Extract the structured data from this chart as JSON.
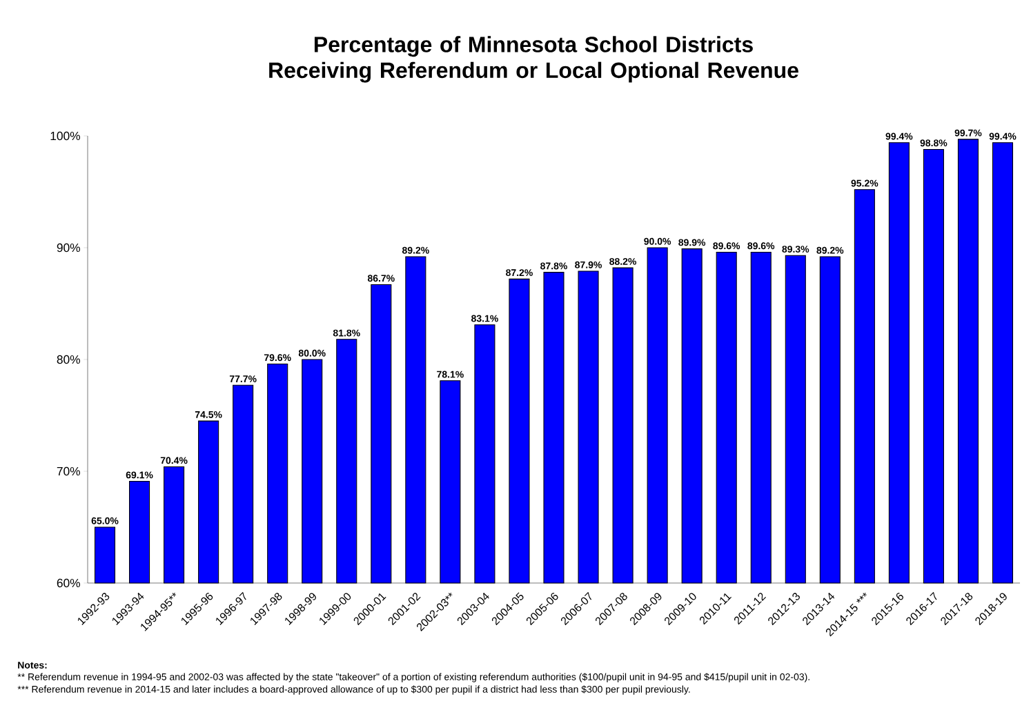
{
  "chart_data": {
    "type": "bar",
    "title": "Percentage of Minnesota School Districts Receiving Referendum or Local Optional Revenue",
    "categories": [
      "1992-93",
      "1993-94",
      "1994-95**",
      "1995-96",
      "1996-97",
      "1997-98",
      "1998-99",
      "1999-00",
      "2000-01",
      "2001-02",
      "2002-03**",
      "2003-04",
      "2004-05",
      "2005-06",
      "2006-07",
      "2007-08",
      "2008-09",
      "2009-10",
      "2010-11",
      "2011-12",
      "2012-13",
      "2013-14",
      "2014-15 ***",
      "2015-16",
      "2016-17",
      "2017-18",
      "2018-19"
    ],
    "values": [
      65.0,
      69.1,
      70.4,
      74.5,
      77.7,
      79.6,
      80.0,
      81.8,
      86.7,
      89.2,
      78.1,
      83.1,
      87.2,
      87.8,
      87.9,
      88.2,
      90.0,
      89.9,
      89.6,
      89.6,
      89.3,
      89.2,
      95.2,
      99.4,
      98.8,
      99.7,
      99.4
    ],
    "value_labels": [
      "65.0%",
      "69.1%",
      "70.4%",
      "74.5%",
      "77.7%",
      "79.6%",
      "80.0%",
      "81.8%",
      "86.7%",
      "89.2%",
      "78.1%",
      "83.1%",
      "87.2%",
      "87.8%",
      "87.9%",
      "88.2%",
      "90.0%",
      "89.9%",
      "89.6%",
      "89.6%",
      "89.3%",
      "89.2%",
      "95.2%",
      "99.4%",
      "98.8%",
      "99.7%",
      "99.4%"
    ],
    "color": "#0000ff",
    "ylim": [
      60,
      100
    ],
    "yticks": [
      {
        "value": 60,
        "label": "60%"
      },
      {
        "value": 70,
        "label": "70%"
      },
      {
        "value": 80,
        "label": "80%"
      },
      {
        "value": 90,
        "label": "90%"
      },
      {
        "value": 100,
        "label": "100%"
      }
    ],
    "grid": false,
    "annotations": [
      "Notes:",
      "**  Referendum revenue in 1994-95 and 2002-03 was affected by the state \"takeover\" of a portion of existing referendum authorities ($100/pupil unit in 94-95 and $415/pupil unit in 02-03).",
      "*** Referendum revenue in 2014-15 and later includes a board-approved allowance of up to $300 per pupil if a district had less than $300 per pupil previously."
    ]
  }
}
